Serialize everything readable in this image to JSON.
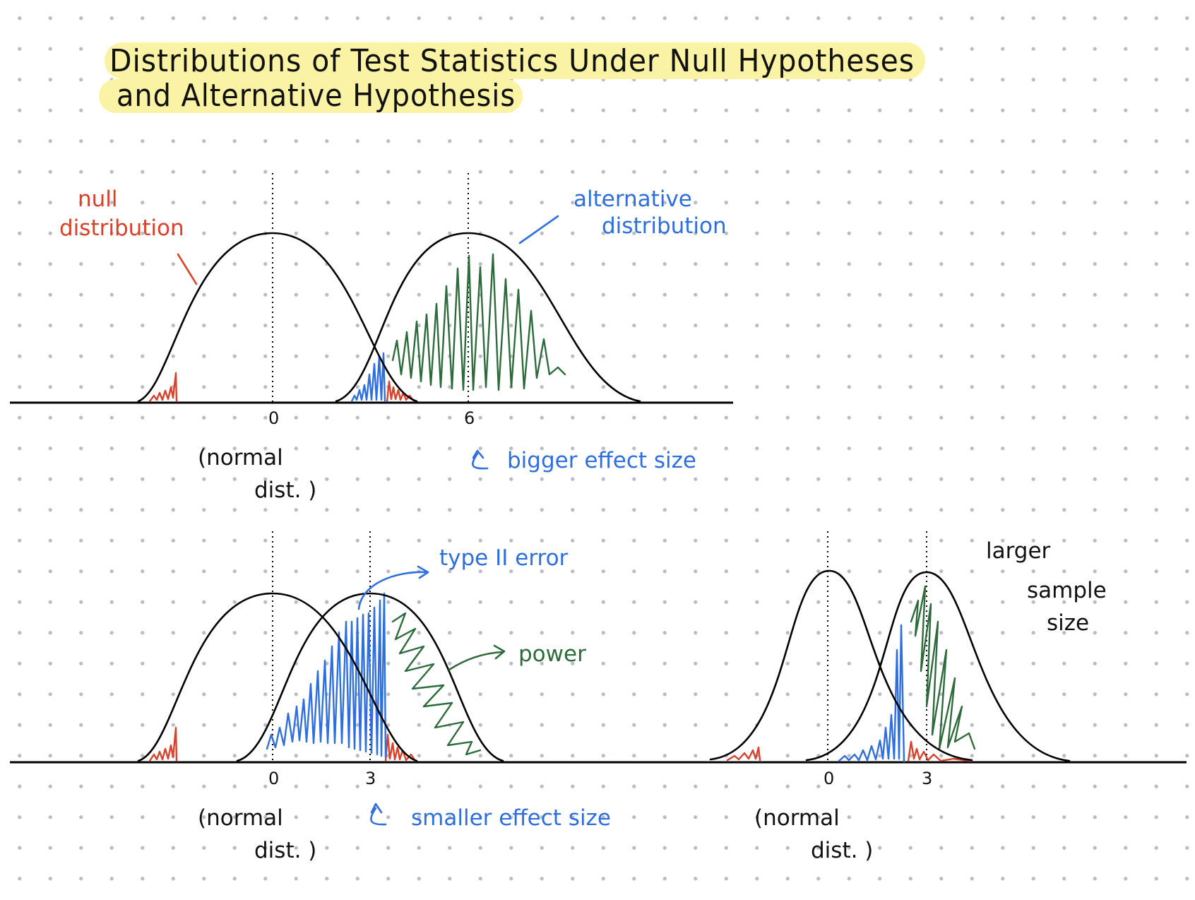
{
  "title": {
    "line1": "Distributions of Test Statistics Under Null Hypotheses",
    "line2": "and Alternative Hypothesis"
  },
  "colors": {
    "ink": "#111111",
    "red": "#d9412b",
    "blue": "#2f6fdd",
    "green": "#2e6b3c",
    "highlight": "#fbf3a4"
  },
  "labels": {
    "null_line1": "null",
    "null_line2": "distribution",
    "alt_line1": "alternative",
    "alt_line2": "distribution",
    "bigger_effect": "bigger effect size",
    "smaller_effect": "smaller effect size",
    "type_ii": "type II error",
    "power": "power",
    "larger_line1": "larger",
    "larger_line2": "sample",
    "larger_line3": "size",
    "normal_line1": "(normal",
    "normal_line2": "dist. )"
  },
  "panels": {
    "top": {
      "null_mean_label": "0",
      "alt_mean_label": "6"
    },
    "bottom_left": {
      "null_mean_label": "0",
      "alt_mean_label": "3"
    },
    "bottom_right": {
      "null_mean_label": "0",
      "alt_mean_label": "3"
    }
  }
}
